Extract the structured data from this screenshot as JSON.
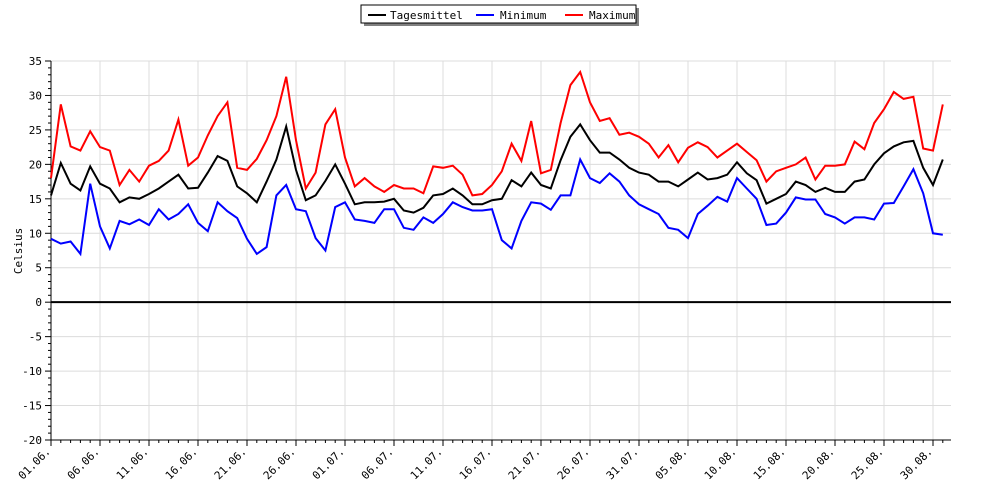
{
  "chart_data": {
    "type": "line",
    "ylabel": "Celsius",
    "xlabel": "",
    "ylim": [
      -20,
      35
    ],
    "yticks": [
      -20,
      -15,
      -10,
      -5,
      0,
      5,
      10,
      15,
      20,
      25,
      30,
      35
    ],
    "xtick_labels": [
      "01.06.",
      "06.06.",
      "11.06.",
      "16.06.",
      "21.06.",
      "26.06.",
      "01.07.",
      "06.07.",
      "11.07.",
      "16.07.",
      "21.07.",
      "26.07.",
      "31.07.",
      "05.08.",
      "10.08.",
      "15.08.",
      "20.08.",
      "25.08.",
      "30.08."
    ],
    "grid": true,
    "legend_position": "top-center",
    "series": [
      {
        "name": "Tagesmittel",
        "color": "#000000",
        "values": [
          15.5,
          20.2,
          17.2,
          16.2,
          19.7,
          17.2,
          16.5,
          14.5,
          15.2,
          15.0,
          15.7,
          16.5,
          17.5,
          18.5,
          16.5,
          16.6,
          18.8,
          21.2,
          20.5,
          16.8,
          15.8,
          14.5,
          17.5,
          20.7,
          25.5,
          19.2,
          14.8,
          15.5,
          17.6,
          20.0,
          17.2,
          14.2,
          14.5,
          14.5,
          14.6,
          15.0,
          13.3,
          13.0,
          13.7,
          15.5,
          15.7,
          16.5,
          15.5,
          14.2,
          14.2,
          14.8,
          15.0,
          17.7,
          16.8,
          18.8,
          17.0,
          16.5,
          20.6,
          24.0,
          25.8,
          23.5,
          21.7,
          21.7,
          20.7,
          19.5,
          18.8,
          18.5,
          17.5,
          17.5,
          16.8,
          17.8,
          18.8,
          17.8,
          18.0,
          18.5,
          20.3,
          18.7,
          17.7,
          14.3,
          15.0,
          15.7,
          17.5,
          17.0,
          16.0,
          16.6,
          16.0,
          16.0,
          17.5,
          17.8,
          20.0,
          21.6,
          22.6,
          23.2,
          23.4,
          19.5,
          17.0,
          20.7
        ]
      },
      {
        "name": "Minimum",
        "color": "#0000ff",
        "values": [
          9.2,
          8.5,
          8.8,
          7.0,
          17.2,
          11.0,
          7.8,
          11.8,
          11.3,
          12.0,
          11.2,
          13.5,
          12.0,
          12.8,
          14.2,
          11.5,
          10.3,
          14.5,
          13.2,
          12.2,
          9.2,
          7.0,
          8.0,
          15.5,
          17.0,
          13.5,
          13.2,
          9.3,
          7.5,
          13.8,
          14.5,
          12.0,
          11.8,
          11.5,
          13.5,
          13.5,
          10.8,
          10.5,
          12.3,
          11.5,
          12.8,
          14.5,
          13.8,
          13.3,
          13.3,
          13.5,
          9.0,
          7.8,
          11.8,
          14.5,
          14.3,
          13.4,
          15.5,
          15.5,
          20.7,
          18.0,
          17.3,
          18.7,
          17.5,
          15.5,
          14.2,
          13.5,
          12.8,
          10.8,
          10.5,
          9.3,
          12.8,
          14.0,
          15.3,
          14.6,
          18.0,
          16.5,
          15.0,
          11.2,
          11.4,
          13.0,
          15.2,
          14.9,
          14.9,
          12.8,
          12.3,
          11.4,
          12.3,
          12.3,
          12.0,
          14.3,
          14.4,
          16.8,
          19.3,
          15.8,
          10.0,
          9.8
        ]
      },
      {
        "name": "Maximum",
        "color": "#ff0000",
        "values": [
          18.0,
          28.7,
          22.6,
          22.0,
          24.8,
          22.5,
          22.0,
          17.0,
          19.2,
          17.5,
          19.8,
          20.5,
          22.0,
          26.5,
          19.8,
          21.0,
          24.2,
          27.0,
          29.0,
          19.5,
          19.2,
          20.8,
          23.5,
          27.0,
          32.7,
          23.5,
          16.5,
          18.8,
          25.8,
          28.0,
          21.0,
          16.8,
          18.0,
          16.8,
          16.0,
          17.0,
          16.5,
          16.5,
          15.8,
          19.7,
          19.5,
          19.8,
          18.5,
          15.5,
          15.7,
          17.0,
          19.0,
          23.0,
          20.5,
          26.3,
          18.7,
          19.2,
          26.0,
          31.5,
          33.4,
          29.0,
          26.3,
          26.7,
          24.3,
          24.6,
          24.0,
          23.0,
          21.0,
          22.8,
          20.3,
          22.4,
          23.2,
          22.5,
          21.0,
          22.0,
          23.0,
          21.8,
          20.6,
          17.5,
          19.0,
          19.5,
          20.0,
          21.0,
          17.8,
          19.8,
          19.8,
          20.0,
          23.3,
          22.2,
          26.0,
          28.0,
          30.5,
          29.5,
          29.8,
          22.3,
          22.0,
          28.7
        ]
      }
    ]
  }
}
